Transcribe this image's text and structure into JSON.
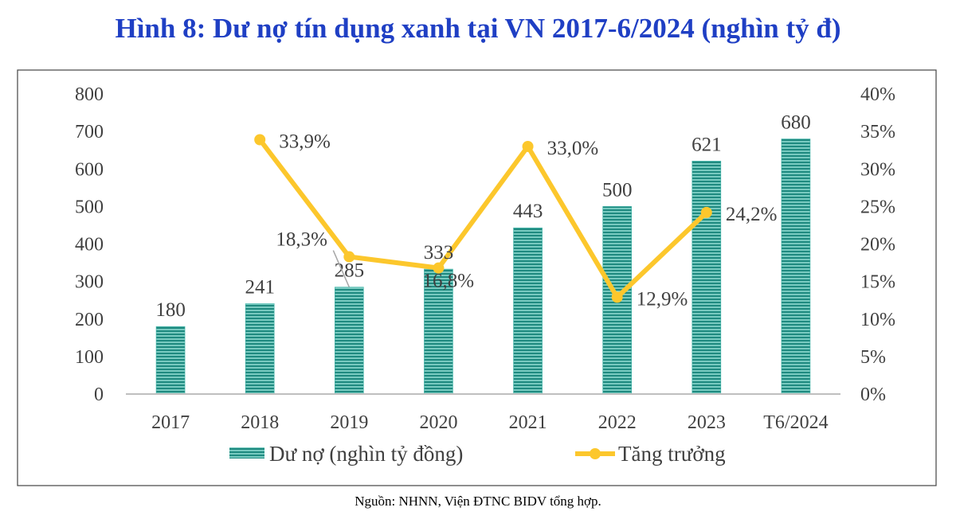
{
  "title": "Hình 8: Dư nợ tín dụng xanh tại VN 2017-6/2024 (nghìn tỷ đ)",
  "source": "Nguồn: NHNN, Viện ĐTNC BIDV tổng hợp.",
  "chart_data": {
    "type": "bar+line",
    "categories": [
      "2017",
      "2018",
      "2019",
      "2020",
      "2021",
      "2022",
      "2023",
      "T6/2024"
    ],
    "series": [
      {
        "name": "Dư nợ (nghìn tỷ đồng)",
        "type": "bar",
        "axis": "left",
        "values": [
          180,
          241,
          285,
          333,
          443,
          500,
          621,
          680
        ],
        "labels": [
          "180",
          "241",
          "285",
          "333",
          "443",
          "500",
          "621",
          "680"
        ],
        "color": "#2a9d8f"
      },
      {
        "name": "Tăng trưởng",
        "type": "line",
        "axis": "right",
        "values": [
          null,
          33.9,
          18.3,
          16.8,
          33.0,
          12.9,
          24.2,
          null
        ],
        "labels": [
          "",
          "33,9%",
          "18,3%",
          "16,8%",
          "33,0%",
          "12,9%",
          "24,2%",
          ""
        ],
        "color": "#fcc72c"
      }
    ],
    "y_left": {
      "range": [
        0,
        800
      ],
      "ticks": [
        "0",
        "100",
        "200",
        "300",
        "400",
        "500",
        "600",
        "700",
        "800"
      ]
    },
    "y_right": {
      "range": [
        0,
        40
      ],
      "ticks": [
        "0%",
        "5%",
        "10%",
        "15%",
        "20%",
        "25%",
        "30%",
        "35%",
        "40%"
      ]
    },
    "grid": false,
    "legend": "bottom"
  }
}
